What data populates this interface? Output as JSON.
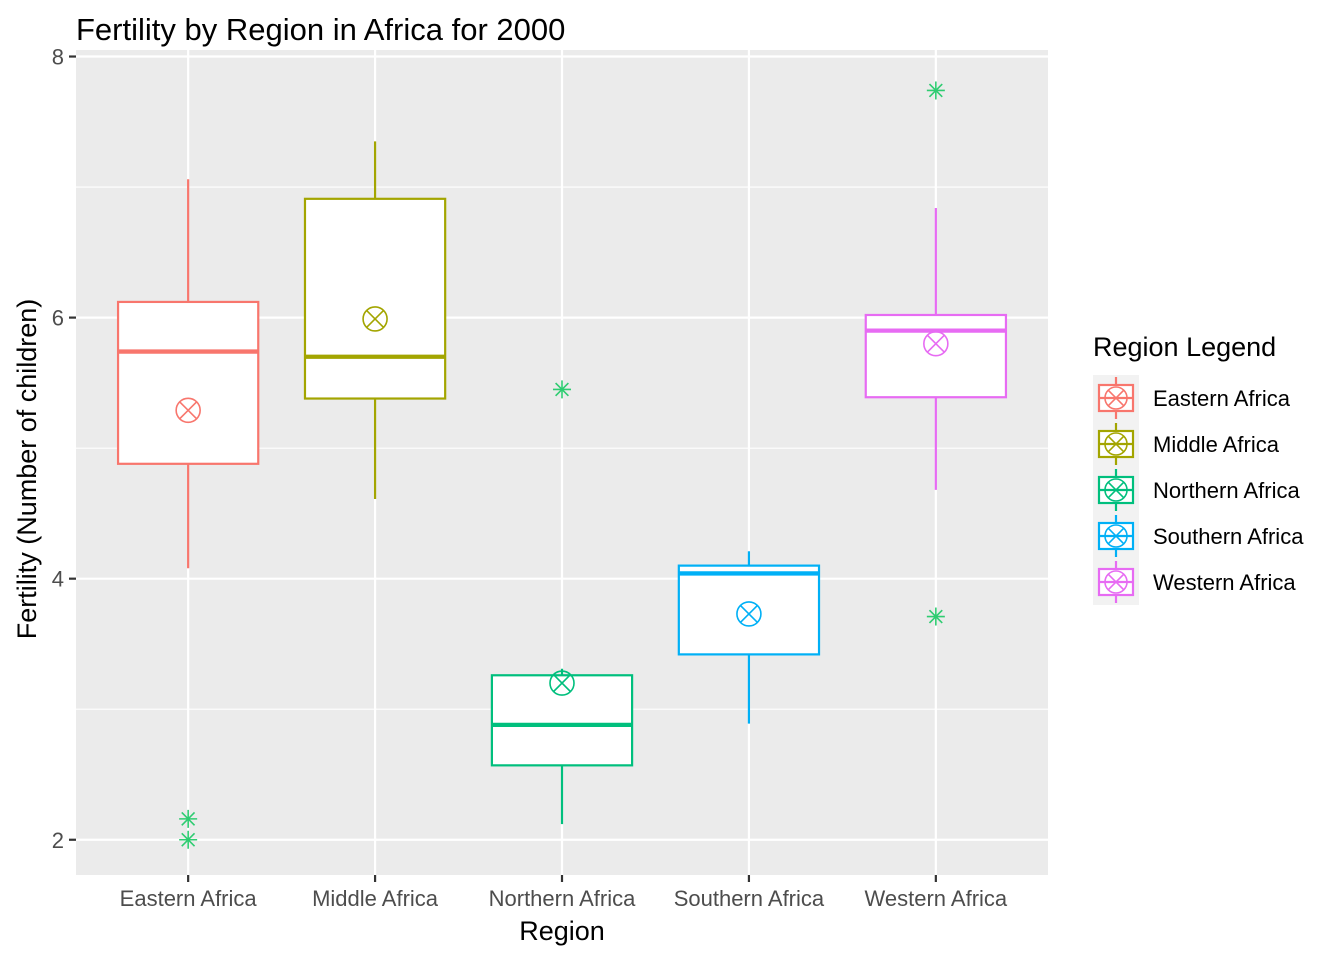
{
  "chart_data": {
    "type": "boxplot",
    "title": "Fertility by Region in Africa for 2000",
    "xlabel": "Region",
    "ylabel": "Fertility (Number of children)",
    "ylim": [
      1.73,
      8.05
    ],
    "yticks": [
      2,
      4,
      6,
      8
    ],
    "ytick_labels": [
      "2",
      "4",
      "6",
      "8"
    ],
    "legend": {
      "title": "Region Legend",
      "position": "right"
    },
    "outlier_color": "#2ECC71",
    "groups": [
      {
        "name": "Eastern Africa",
        "color": "#F8766D",
        "whisker_low": 4.08,
        "q1": 4.88,
        "median": 5.74,
        "q3": 6.12,
        "whisker_high": 7.06,
        "mean": 5.29,
        "outliers": [
          2.16,
          2.0
        ]
      },
      {
        "name": "Middle Africa",
        "color": "#A3A500",
        "whisker_low": 4.61,
        "q1": 5.38,
        "median": 5.7,
        "q3": 6.91,
        "whisker_high": 7.35,
        "mean": 5.99,
        "outliers": []
      },
      {
        "name": "Northern Africa",
        "color": "#00BF7D",
        "whisker_low": 2.12,
        "q1": 2.57,
        "median": 2.88,
        "q3": 3.26,
        "whisker_high": 3.31,
        "mean": 3.2,
        "outliers": [
          5.45
        ]
      },
      {
        "name": "Southern Africa",
        "color": "#00B0F6",
        "whisker_low": 2.89,
        "q1": 3.42,
        "median": 4.04,
        "q3": 4.1,
        "whisker_high": 4.21,
        "mean": 3.73,
        "outliers": []
      },
      {
        "name": "Western Africa",
        "color": "#E76BF3",
        "whisker_low": 4.68,
        "q1": 5.39,
        "median": 5.9,
        "q3": 6.02,
        "whisker_high": 6.84,
        "mean": 5.8,
        "outliers": [
          7.74,
          3.71
        ]
      }
    ]
  }
}
